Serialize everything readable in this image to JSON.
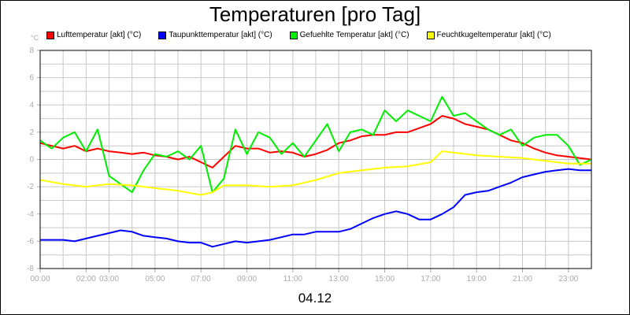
{
  "chart_data": {
    "type": "line",
    "title": "Temperaturen [pro Tag]",
    "ylabel": "°C",
    "xlabel": "04.12",
    "ylim": [
      -8,
      8
    ],
    "xlim_hours": [
      0,
      24
    ],
    "grid": true,
    "legend_placement": "top",
    "y_ticks": [
      "-8",
      "-6",
      "-4",
      "-2",
      "0",
      "2",
      "4",
      "6",
      "8"
    ],
    "x_ticks": [
      {
        "h": 0,
        "label": "00:00"
      },
      {
        "h": 2,
        "label": "02:00"
      },
      {
        "h": 3,
        "label": "03:00"
      },
      {
        "h": 5,
        "label": "05:00"
      },
      {
        "h": 7,
        "label": "07:00"
      },
      {
        "h": 9,
        "label": "09:00"
      },
      {
        "h": 11,
        "label": "11:00"
      },
      {
        "h": 13,
        "label": "13:00"
      },
      {
        "h": 15,
        "label": "15:00"
      },
      {
        "h": 17,
        "label": "17:00"
      },
      {
        "h": 19,
        "label": "19:00"
      },
      {
        "h": 21,
        "label": "21:00"
      },
      {
        "h": 23,
        "label": "23:00"
      }
    ],
    "series": [
      {
        "name": "Lufttemperatur [akt] (°C)",
        "color": "#ff0000",
        "x": [
          0,
          0.5,
          1,
          1.5,
          2,
          2.5,
          3,
          3.5,
          4,
          4.5,
          5,
          5.5,
          6,
          6.5,
          7,
          7.5,
          8,
          8.5,
          9,
          9.5,
          10,
          10.5,
          11,
          11.5,
          12,
          12.5,
          13,
          13.5,
          14,
          14.5,
          15,
          15.5,
          16,
          16.5,
          17,
          17.5,
          18,
          18.5,
          19,
          19.5,
          20,
          20.5,
          21,
          21.5,
          22,
          22.5,
          23,
          23.5,
          24
        ],
        "values": [
          1.2,
          1.0,
          0.8,
          1.0,
          0.6,
          0.8,
          0.6,
          0.5,
          0.4,
          0.5,
          0.3,
          0.2,
          0.0,
          0.2,
          -0.2,
          -0.6,
          0.2,
          1.0,
          0.8,
          0.8,
          0.5,
          0.6,
          0.5,
          0.2,
          0.4,
          0.7,
          1.2,
          1.4,
          1.7,
          1.8,
          1.8,
          2.0,
          2.0,
          2.3,
          2.6,
          3.2,
          3.0,
          2.6,
          2.4,
          2.2,
          1.8,
          1.4,
          1.2,
          0.8,
          0.5,
          0.3,
          0.2,
          0.1,
          0.0
        ]
      },
      {
        "name": "Taupunkttemperatur [akt] (°C)",
        "color": "#0000ff",
        "x": [
          0,
          0.5,
          1,
          1.5,
          2,
          2.5,
          3,
          3.5,
          4,
          4.5,
          5,
          5.5,
          6,
          6.5,
          7,
          7.5,
          8,
          8.5,
          9,
          9.5,
          10,
          10.5,
          11,
          11.5,
          12,
          12.5,
          13,
          13.5,
          14,
          14.5,
          15,
          15.5,
          16,
          16.5,
          17,
          17.5,
          18,
          18.5,
          19,
          19.5,
          20,
          20.5,
          21,
          21.5,
          22,
          22.5,
          23,
          23.5,
          24
        ],
        "values": [
          -5.9,
          -5.9,
          -5.9,
          -6.0,
          -5.8,
          -5.6,
          -5.4,
          -5.2,
          -5.3,
          -5.6,
          -5.7,
          -5.8,
          -6.0,
          -6.1,
          -6.1,
          -6.4,
          -6.2,
          -6.0,
          -6.1,
          -6.0,
          -5.9,
          -5.7,
          -5.5,
          -5.5,
          -5.3,
          -5.3,
          -5.3,
          -5.1,
          -4.7,
          -4.3,
          -4.0,
          -3.8,
          -4.0,
          -4.4,
          -4.4,
          -4.0,
          -3.5,
          -2.6,
          -2.4,
          -2.3,
          -2.0,
          -1.7,
          -1.3,
          -1.1,
          -0.9,
          -0.8,
          -0.7,
          -0.8,
          -0.8
        ]
      },
      {
        "name": "Gefuehlte Temperatur [akt] (°C)",
        "color": "#00ee00",
        "x": [
          0,
          0.5,
          1,
          1.5,
          2,
          2.5,
          3,
          3.5,
          4,
          4.5,
          5,
          5.5,
          6,
          6.5,
          7,
          7.5,
          8,
          8.5,
          9,
          9.5,
          10,
          10.5,
          11,
          11.5,
          12,
          12.5,
          13,
          13.5,
          14,
          14.5,
          15,
          15.5,
          16,
          16.5,
          17,
          17.5,
          18,
          18.5,
          19,
          19.5,
          20,
          20.5,
          21,
          21.5,
          22,
          22.5,
          23,
          23.5,
          24
        ],
        "values": [
          1.4,
          0.8,
          1.6,
          2.0,
          0.6,
          2.2,
          -1.2,
          -1.8,
          -2.4,
          -0.8,
          0.4,
          0.2,
          0.6,
          0.0,
          1.0,
          -2.4,
          -1.4,
          2.2,
          0.4,
          2.0,
          1.6,
          0.4,
          1.2,
          0.2,
          1.4,
          2.6,
          0.6,
          2.0,
          2.2,
          1.8,
          3.6,
          2.8,
          3.6,
          3.2,
          2.8,
          4.6,
          3.2,
          3.4,
          2.8,
          2.2,
          1.8,
          2.2,
          1.0,
          1.6,
          1.8,
          1.8,
          1.0,
          -0.4,
          0.0
        ]
      },
      {
        "name": "Feuchtkugeltemperatur [akt] (°C)",
        "color": "#ffff00",
        "x": [
          0,
          1,
          2,
          3,
          4,
          5,
          6,
          7,
          7.5,
          8,
          9,
          10,
          11,
          12,
          13,
          14,
          15,
          16,
          17,
          17.5,
          18,
          19,
          20,
          21,
          22,
          23,
          24
        ],
        "values": [
          -1.5,
          -1.8,
          -2.0,
          -1.8,
          -1.9,
          -2.1,
          -2.3,
          -2.6,
          -2.4,
          -1.9,
          -1.9,
          -2.0,
          -1.9,
          -1.5,
          -1.0,
          -0.8,
          -0.6,
          -0.5,
          -0.2,
          0.6,
          0.5,
          0.3,
          0.2,
          0.1,
          -0.1,
          -0.3,
          -0.3
        ]
      }
    ]
  }
}
